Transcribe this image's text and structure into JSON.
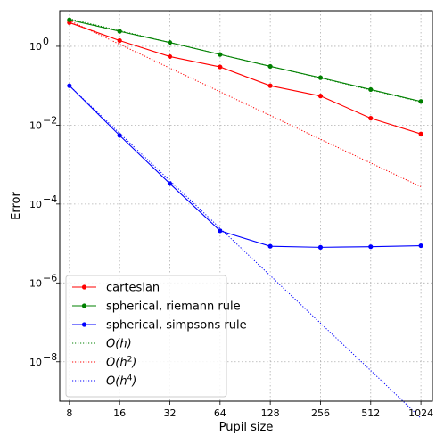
{
  "chart_data": {
    "type": "line",
    "title": "",
    "xlabel": "Pupil size",
    "ylabel": "Error",
    "xscale": "log2",
    "yscale": "log10",
    "xlim": [
      7,
      1200
    ],
    "ylim": [
      1e-09,
      8
    ],
    "grid": true,
    "grid_style": "dotted",
    "legend_position": "lower-left",
    "x_ticks": [
      {
        "value": 8,
        "label": "8"
      },
      {
        "value": 16,
        "label": "16"
      },
      {
        "value": 32,
        "label": "32"
      },
      {
        "value": 64,
        "label": "64"
      },
      {
        "value": 128,
        "label": "128"
      },
      {
        "value": 256,
        "label": "256"
      },
      {
        "value": 512,
        "label": "512"
      },
      {
        "value": 1024,
        "label": "1024"
      }
    ],
    "y_ticks": [
      {
        "value": 1,
        "base": "10",
        "exp": "0"
      },
      {
        "value": 0.01,
        "base": "10",
        "exp": "−2"
      },
      {
        "value": 0.0001,
        "base": "10",
        "exp": "−4"
      },
      {
        "value": 1e-06,
        "base": "10",
        "exp": "−6"
      },
      {
        "value": 1e-08,
        "base": "10",
        "exp": "−8"
      }
    ],
    "x": [
      8,
      16,
      32,
      64,
      128,
      256,
      512,
      1024
    ],
    "series": [
      {
        "name": "cartesian",
        "color": "#ff0000",
        "style": "solid-marker",
        "values": [
          4.0,
          1.4,
          0.55,
          0.3,
          0.1,
          0.055,
          0.015,
          0.006
        ]
      },
      {
        "name": "spherical, riemann rule",
        "color": "#008000",
        "style": "solid-marker",
        "values": [
          4.7,
          2.4,
          1.25,
          0.62,
          0.31,
          0.16,
          0.08,
          0.04
        ]
      },
      {
        "name": "spherical, simpsons rule",
        "color": "#0000ff",
        "style": "solid-marker",
        "values": [
          0.1,
          0.0055,
          0.00033,
          2.1e-05,
          8.5e-06,
          8e-06,
          8.3e-06,
          8.8e-06
        ]
      },
      {
        "name": "O(h)",
        "label_base": "O(",
        "label_var": "h",
        "label_sup": "",
        "label_end": ")",
        "color": "#008000",
        "style": "dotted",
        "values": [
          5.0,
          2.5,
          1.25,
          0.625,
          0.3125,
          0.156,
          0.078,
          0.039
        ]
      },
      {
        "name": "O(h^2)",
        "label_base": "O(",
        "label_var": "h",
        "label_sup": "2",
        "label_end": ")",
        "color": "#ff0000",
        "style": "dotted",
        "values": [
          4.5,
          1.125,
          0.281,
          0.0703,
          0.0176,
          0.0044,
          0.0011,
          0.000275
        ]
      },
      {
        "name": "O(h^4)",
        "label_base": "O(",
        "label_var": "h",
        "label_sup": "4",
        "label_end": ")",
        "color": "#0000ff",
        "style": "dotted",
        "values": [
          0.1,
          0.00625,
          0.00039,
          2.44e-05,
          1.53e-06,
          9.5e-08,
          6e-09,
          3.7e-10
        ]
      }
    ]
  }
}
